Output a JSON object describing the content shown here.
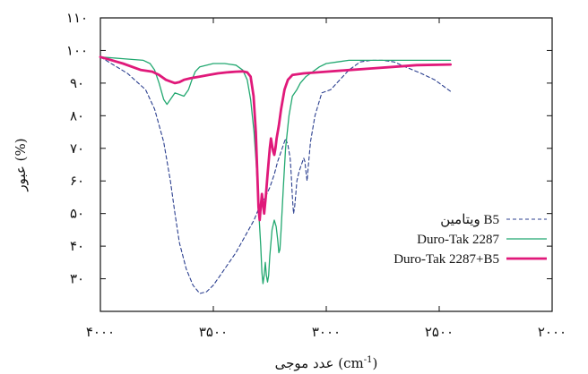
{
  "chart_data": {
    "type": "line",
    "title": "",
    "xlabel": "عدد موجی (cm-1)",
    "xlabel_parts": {
      "main": "عدد موجی (cm",
      "sup": "-1",
      "tail": ")"
    },
    "ylabel": "عبور (%)",
    "xlim": [
      4000,
      2000
    ],
    "ylim": [
      20,
      110
    ],
    "x_reversed": true,
    "grid": false,
    "legend_position": "right, lower-middle",
    "x_ticks": [
      4000,
      3500,
      3000,
      2500,
      2000
    ],
    "x_tick_labels": [
      "۴۰۰۰",
      "۳۵۰۰",
      "۳۰۰۰",
      "۲۵۰۰",
      "۲۰۰۰"
    ],
    "y_ticks": [
      30,
      40,
      50,
      60,
      70,
      80,
      90,
      100,
      110
    ],
    "y_tick_labels": [
      "۳۰",
      "۴۰",
      "۵۰",
      "۶۰",
      "۷۰",
      "۸۰",
      "۹۰",
      "۱۰۰",
      "۱۱۰"
    ],
    "series": [
      {
        "name": "ویتامین B5",
        "color": "#2b3f8f",
        "style": "dashed",
        "width": 1.1,
        "points": [
          [
            4000,
            98
          ],
          [
            3880,
            93
          ],
          [
            3800,
            88
          ],
          [
            3760,
            82
          ],
          [
            3720,
            72
          ],
          [
            3690,
            60
          ],
          [
            3670,
            50
          ],
          [
            3650,
            41
          ],
          [
            3620,
            33
          ],
          [
            3590,
            28
          ],
          [
            3560,
            25.5
          ],
          [
            3530,
            26
          ],
          [
            3500,
            28
          ],
          [
            3470,
            31
          ],
          [
            3440,
            34
          ],
          [
            3400,
            38
          ],
          [
            3360,
            43
          ],
          [
            3320,
            48
          ],
          [
            3290,
            53
          ],
          [
            3270,
            55
          ],
          [
            3250,
            58
          ],
          [
            3230,
            62
          ],
          [
            3215,
            66
          ],
          [
            3200,
            69
          ],
          [
            3190,
            71
          ],
          [
            3180,
            73
          ],
          [
            3170,
            71
          ],
          [
            3160,
            67
          ],
          [
            3155,
            62
          ],
          [
            3150,
            55
          ],
          [
            3145,
            50
          ],
          [
            3140,
            52
          ],
          [
            3135,
            56
          ],
          [
            3130,
            60
          ],
          [
            3120,
            63
          ],
          [
            3110,
            65
          ],
          [
            3100,
            67
          ],
          [
            3095,
            66
          ],
          [
            3090,
            63
          ],
          [
            3085,
            60
          ],
          [
            3080,
            64
          ],
          [
            3070,
            72
          ],
          [
            3050,
            80
          ],
          [
            3020,
            87
          ],
          [
            2980,
            88
          ],
          [
            2940,
            91
          ],
          [
            2900,
            94
          ],
          [
            2850,
            96.5
          ],
          [
            2800,
            97
          ],
          [
            2750,
            97
          ],
          [
            2700,
            96.5
          ],
          [
            2650,
            95
          ],
          [
            2580,
            93
          ],
          [
            2520,
            91
          ],
          [
            2480,
            89
          ],
          [
            2450,
            87.5
          ]
        ]
      },
      {
        "name": "Duro-Tak 2287",
        "color": "#22a870",
        "style": "solid",
        "width": 1.3,
        "points": [
          [
            4000,
            98
          ],
          [
            3900,
            97.5
          ],
          [
            3810,
            97
          ],
          [
            3780,
            96
          ],
          [
            3760,
            94
          ],
          [
            3740,
            90
          ],
          [
            3720,
            85
          ],
          [
            3705,
            83.5
          ],
          [
            3690,
            85
          ],
          [
            3670,
            87
          ],
          [
            3650,
            86.5
          ],
          [
            3630,
            86
          ],
          [
            3610,
            88
          ],
          [
            3595,
            91
          ],
          [
            3580,
            93.5
          ],
          [
            3560,
            95
          ],
          [
            3500,
            96
          ],
          [
            3450,
            96
          ],
          [
            3400,
            95.5
          ],
          [
            3370,
            94
          ],
          [
            3350,
            91
          ],
          [
            3335,
            85
          ],
          [
            3320,
            75
          ],
          [
            3310,
            65
          ],
          [
            3300,
            52
          ],
          [
            3290,
            40
          ],
          [
            3285,
            32
          ],
          [
            3280,
            28.5
          ],
          [
            3275,
            31
          ],
          [
            3270,
            35
          ],
          [
            3265,
            31
          ],
          [
            3260,
            29
          ],
          [
            3255,
            31
          ],
          [
            3250,
            37
          ],
          [
            3240,
            45
          ],
          [
            3230,
            48
          ],
          [
            3222,
            46
          ],
          [
            3215,
            42
          ],
          [
            3210,
            38
          ],
          [
            3205,
            39
          ],
          [
            3200,
            45
          ],
          [
            3190,
            58
          ],
          [
            3180,
            70
          ],
          [
            3165,
            80
          ],
          [
            3150,
            86
          ],
          [
            3130,
            88
          ],
          [
            3115,
            90
          ],
          [
            3090,
            92
          ],
          [
            3060,
            93.5
          ],
          [
            3030,
            95
          ],
          [
            3000,
            96
          ],
          [
            2950,
            96.5
          ],
          [
            2900,
            97
          ],
          [
            2800,
            97
          ],
          [
            2600,
            97
          ],
          [
            2450,
            97
          ]
        ]
      },
      {
        "name": "Duro-Tak 2287+B5",
        "color": "#e0197a",
        "style": "solid",
        "width": 2.8,
        "points": [
          [
            4000,
            98
          ],
          [
            3900,
            96
          ],
          [
            3820,
            94
          ],
          [
            3770,
            93.5
          ],
          [
            3740,
            92.5
          ],
          [
            3710,
            91
          ],
          [
            3690,
            90.5
          ],
          [
            3670,
            90
          ],
          [
            3650,
            90.3
          ],
          [
            3630,
            91
          ],
          [
            3600,
            91.5
          ],
          [
            3560,
            92
          ],
          [
            3520,
            92.5
          ],
          [
            3480,
            93
          ],
          [
            3440,
            93.3
          ],
          [
            3400,
            93.5
          ],
          [
            3370,
            93.6
          ],
          [
            3350,
            93.3
          ],
          [
            3335,
            92
          ],
          [
            3322,
            86
          ],
          [
            3312,
            75
          ],
          [
            3305,
            62
          ],
          [
            3300,
            52
          ],
          [
            3295,
            48
          ],
          [
            3290,
            52
          ],
          [
            3285,
            56
          ],
          [
            3280,
            53
          ],
          [
            3275,
            50
          ],
          [
            3268,
            55
          ],
          [
            3260,
            62
          ],
          [
            3250,
            70
          ],
          [
            3245,
            73
          ],
          [
            3240,
            71
          ],
          [
            3235,
            69
          ],
          [
            3230,
            68
          ],
          [
            3225,
            70
          ],
          [
            3220,
            73
          ],
          [
            3210,
            77
          ],
          [
            3200,
            82
          ],
          [
            3185,
            88
          ],
          [
            3170,
            91
          ],
          [
            3150,
            92.5
          ],
          [
            3100,
            93
          ],
          [
            3000,
            93.5
          ],
          [
            2900,
            94
          ],
          [
            2800,
            94.5
          ],
          [
            2700,
            95
          ],
          [
            2600,
            95.5
          ],
          [
            2450,
            95.7
          ]
        ]
      }
    ]
  }
}
